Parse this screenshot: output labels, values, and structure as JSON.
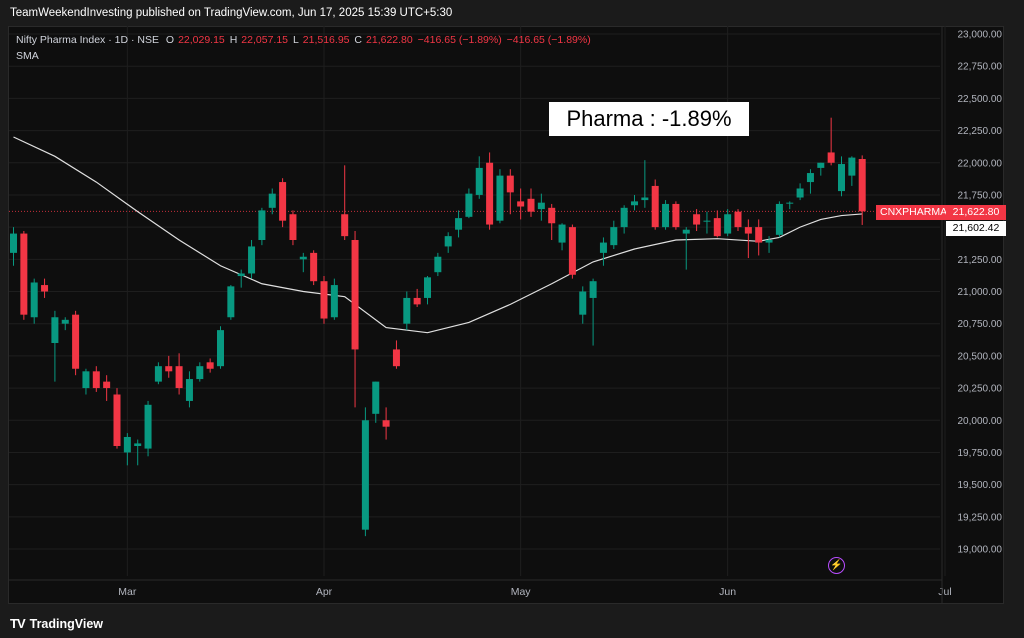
{
  "header": {
    "published": "TeamWeekendInvesting published on TradingView.com, Jun 17, 2025 15:39 UTC+5:30"
  },
  "legend": {
    "symbol": "Nifty Pharma Index · 1D · NSE",
    "o_label": "O",
    "o_value": "22,029.15",
    "h_label": "H",
    "h_value": "22,057.15",
    "l_label": "L",
    "l_value": "21,516.95",
    "c_label": "C",
    "c_value": "21,622.80",
    "change": "−416.65 (−1.89%)",
    "change2": "−416.65 (−1.89%)",
    "indicator": "SMA"
  },
  "annotation": {
    "text": "Pharma : -1.89%"
  },
  "price_tags": {
    "symbol": "CNXPHARMA",
    "last": "21,622.80",
    "sma": "21,602.42"
  },
  "footer": {
    "brand": "TradingView",
    "brand_mark": "TV"
  },
  "icons": {
    "flash": "flash-icon",
    "logo": "tradingview-logo-icon"
  },
  "colors": {
    "up": "#089981",
    "down": "#f23645",
    "sma": "#e0e0e0",
    "background": "#0e0e0e",
    "grid": "#1e1e1e"
  },
  "chart_data": {
    "type": "candlestick",
    "ylim": [
      19000,
      23000
    ],
    "yticks": [
      "23,000.00",
      "22,750.00",
      "22,500.00",
      "22,250.00",
      "22,000.00",
      "21,750.00",
      "21,500.00",
      "21,250.00",
      "21,000.00",
      "20,750.00",
      "20,500.00",
      "20,250.00",
      "20,000.00",
      "19,750.00",
      "19,500.00",
      "19,250.00",
      "19,000.00"
    ],
    "xticks": [
      "Mar",
      "Apr",
      "May",
      "Jun",
      "Jul"
    ],
    "xtick_index": [
      11,
      30,
      49,
      69,
      90
    ],
    "last_price": 21622.8,
    "sma_last": 21602.42,
    "candles": [
      {
        "o": 21300,
        "h": 21500,
        "l": 21200,
        "c": 21450
      },
      {
        "o": 21450,
        "h": 21470,
        "l": 20780,
        "c": 20820
      },
      {
        "o": 20800,
        "h": 21100,
        "l": 20750,
        "c": 21070
      },
      {
        "o": 21050,
        "h": 21100,
        "l": 20950,
        "c": 21000
      },
      {
        "o": 20600,
        "h": 20850,
        "l": 20300,
        "c": 20800
      },
      {
        "o": 20750,
        "h": 20800,
        "l": 20700,
        "c": 20780
      },
      {
        "o": 20820,
        "h": 20850,
        "l": 20350,
        "c": 20400
      },
      {
        "o": 20250,
        "h": 20400,
        "l": 20200,
        "c": 20380
      },
      {
        "o": 20380,
        "h": 20420,
        "l": 20220,
        "c": 20250
      },
      {
        "o": 20300,
        "h": 20350,
        "l": 20150,
        "c": 20250
      },
      {
        "o": 20200,
        "h": 20250,
        "l": 19780,
        "c": 19800
      },
      {
        "o": 19750,
        "h": 19900,
        "l": 19650,
        "c": 19870
      },
      {
        "o": 19800,
        "h": 19850,
        "l": 19650,
        "c": 19820
      },
      {
        "o": 19780,
        "h": 20150,
        "l": 19720,
        "c": 20120
      },
      {
        "o": 20300,
        "h": 20450,
        "l": 20280,
        "c": 20420
      },
      {
        "o": 20420,
        "h": 20500,
        "l": 20330,
        "c": 20380
      },
      {
        "o": 20420,
        "h": 20520,
        "l": 20200,
        "c": 20250
      },
      {
        "o": 20150,
        "h": 20380,
        "l": 20100,
        "c": 20320
      },
      {
        "o": 20320,
        "h": 20450,
        "l": 20300,
        "c": 20420
      },
      {
        "o": 20450,
        "h": 20480,
        "l": 20370,
        "c": 20400
      },
      {
        "o": 20420,
        "h": 20730,
        "l": 20400,
        "c": 20700
      },
      {
        "o": 20800,
        "h": 21050,
        "l": 20780,
        "c": 21040
      },
      {
        "o": 21120,
        "h": 21170,
        "l": 21030,
        "c": 21140
      },
      {
        "o": 21140,
        "h": 21400,
        "l": 21100,
        "c": 21350
      },
      {
        "o": 21400,
        "h": 21650,
        "l": 21360,
        "c": 21630
      },
      {
        "o": 21650,
        "h": 21800,
        "l": 21600,
        "c": 21760
      },
      {
        "o": 21850,
        "h": 21880,
        "l": 21500,
        "c": 21550
      },
      {
        "o": 21600,
        "h": 21630,
        "l": 21360,
        "c": 21400
      },
      {
        "o": 21250,
        "h": 21300,
        "l": 21150,
        "c": 21270
      },
      {
        "o": 21300,
        "h": 21320,
        "l": 21050,
        "c": 21080
      },
      {
        "o": 21080,
        "h": 21120,
        "l": 20750,
        "c": 20790
      },
      {
        "o": 20800,
        "h": 21100,
        "l": 20780,
        "c": 21050
      },
      {
        "o": 21600,
        "h": 21980,
        "l": 21400,
        "c": 21430
      },
      {
        "o": 21400,
        "h": 21470,
        "l": 20100,
        "c": 20550
      },
      {
        "o": 19150,
        "h": 20100,
        "l": 19100,
        "c": 20000
      },
      {
        "o": 20050,
        "h": 20300,
        "l": 19980,
        "c": 20300
      },
      {
        "o": 20000,
        "h": 20100,
        "l": 19850,
        "c": 19950
      },
      {
        "o": 20550,
        "h": 20620,
        "l": 20400,
        "c": 20420
      },
      {
        "o": 20750,
        "h": 21000,
        "l": 20700,
        "c": 20950
      },
      {
        "o": 20950,
        "h": 21020,
        "l": 20880,
        "c": 20900
      },
      {
        "o": 20950,
        "h": 21120,
        "l": 20900,
        "c": 21110
      },
      {
        "o": 21150,
        "h": 21300,
        "l": 21120,
        "c": 21270
      },
      {
        "o": 21350,
        "h": 21460,
        "l": 21300,
        "c": 21430
      },
      {
        "o": 21480,
        "h": 21630,
        "l": 21420,
        "c": 21570
      },
      {
        "o": 21580,
        "h": 21800,
        "l": 21570,
        "c": 21760
      },
      {
        "o": 21750,
        "h": 22050,
        "l": 21720,
        "c": 21960
      },
      {
        "o": 22000,
        "h": 22080,
        "l": 21480,
        "c": 21520
      },
      {
        "o": 21550,
        "h": 21950,
        "l": 21530,
        "c": 21900
      },
      {
        "o": 21900,
        "h": 21950,
        "l": 21600,
        "c": 21770
      },
      {
        "o": 21700,
        "h": 21800,
        "l": 21560,
        "c": 21660
      },
      {
        "o": 21720,
        "h": 21800,
        "l": 21580,
        "c": 21620
      },
      {
        "o": 21640,
        "h": 21760,
        "l": 21550,
        "c": 21690
      },
      {
        "o": 21650,
        "h": 21680,
        "l": 21400,
        "c": 21530
      },
      {
        "o": 21380,
        "h": 21530,
        "l": 21320,
        "c": 21520
      },
      {
        "o": 21500,
        "h": 21520,
        "l": 21100,
        "c": 21130
      },
      {
        "o": 20820,
        "h": 21040,
        "l": 20750,
        "c": 21000
      },
      {
        "o": 20950,
        "h": 21100,
        "l": 20580,
        "c": 21080
      },
      {
        "o": 21300,
        "h": 21420,
        "l": 21200,
        "c": 21380
      },
      {
        "o": 21360,
        "h": 21550,
        "l": 21330,
        "c": 21500
      },
      {
        "o": 21500,
        "h": 21670,
        "l": 21450,
        "c": 21650
      },
      {
        "o": 21670,
        "h": 21750,
        "l": 21630,
        "c": 21700
      },
      {
        "o": 21710,
        "h": 22020,
        "l": 21650,
        "c": 21730
      },
      {
        "o": 21820,
        "h": 21870,
        "l": 21480,
        "c": 21500
      },
      {
        "o": 21500,
        "h": 21710,
        "l": 21480,
        "c": 21680
      },
      {
        "o": 21680,
        "h": 21700,
        "l": 21480,
        "c": 21500
      },
      {
        "o": 21450,
        "h": 21500,
        "l": 21170,
        "c": 21480
      },
      {
        "o": 21600,
        "h": 21640,
        "l": 21470,
        "c": 21520
      },
      {
        "o": 21550,
        "h": 21620,
        "l": 21450,
        "c": 21550
      },
      {
        "o": 21570,
        "h": 21630,
        "l": 21420,
        "c": 21430
      },
      {
        "o": 21450,
        "h": 21640,
        "l": 21430,
        "c": 21600
      },
      {
        "o": 21620,
        "h": 21640,
        "l": 21470,
        "c": 21500
      },
      {
        "o": 21500,
        "h": 21560,
        "l": 21260,
        "c": 21450
      },
      {
        "o": 21500,
        "h": 21560,
        "l": 21280,
        "c": 21380
      },
      {
        "o": 21380,
        "h": 21430,
        "l": 21300,
        "c": 21400
      },
      {
        "o": 21440,
        "h": 21700,
        "l": 21420,
        "c": 21680
      },
      {
        "o": 21690,
        "h": 21700,
        "l": 21640,
        "c": 21690
      },
      {
        "o": 21730,
        "h": 21840,
        "l": 21710,
        "c": 21800
      },
      {
        "o": 21850,
        "h": 21950,
        "l": 21760,
        "c": 21920
      },
      {
        "o": 21960,
        "h": 22000,
        "l": 21900,
        "c": 22000
      },
      {
        "o": 22080,
        "h": 22350,
        "l": 21980,
        "c": 22000
      },
      {
        "o": 21780,
        "h": 22050,
        "l": 21740,
        "c": 21990
      },
      {
        "o": 21900,
        "h": 22050,
        "l": 21820,
        "c": 22040
      },
      {
        "o": 22029.15,
        "h": 22057.15,
        "l": 21516.95,
        "c": 21622.8
      }
    ],
    "sma": [
      [
        0,
        22200
      ],
      [
        4,
        22050
      ],
      [
        8,
        21850
      ],
      [
        12,
        21620
      ],
      [
        16,
        21400
      ],
      [
        20,
        21200
      ],
      [
        24,
        21060
      ],
      [
        28,
        21000
      ],
      [
        32,
        20960
      ],
      [
        36,
        20720
      ],
      [
        40,
        20680
      ],
      [
        44,
        20760
      ],
      [
        48,
        20900
      ],
      [
        52,
        21060
      ],
      [
        56,
        21230
      ],
      [
        60,
        21330
      ],
      [
        64,
        21400
      ],
      [
        68,
        21410
      ],
      [
        72,
        21390
      ],
      [
        74,
        21420
      ],
      [
        76,
        21500
      ],
      [
        78,
        21560
      ],
      [
        80,
        21590
      ],
      [
        82,
        21602.42
      ]
    ]
  }
}
